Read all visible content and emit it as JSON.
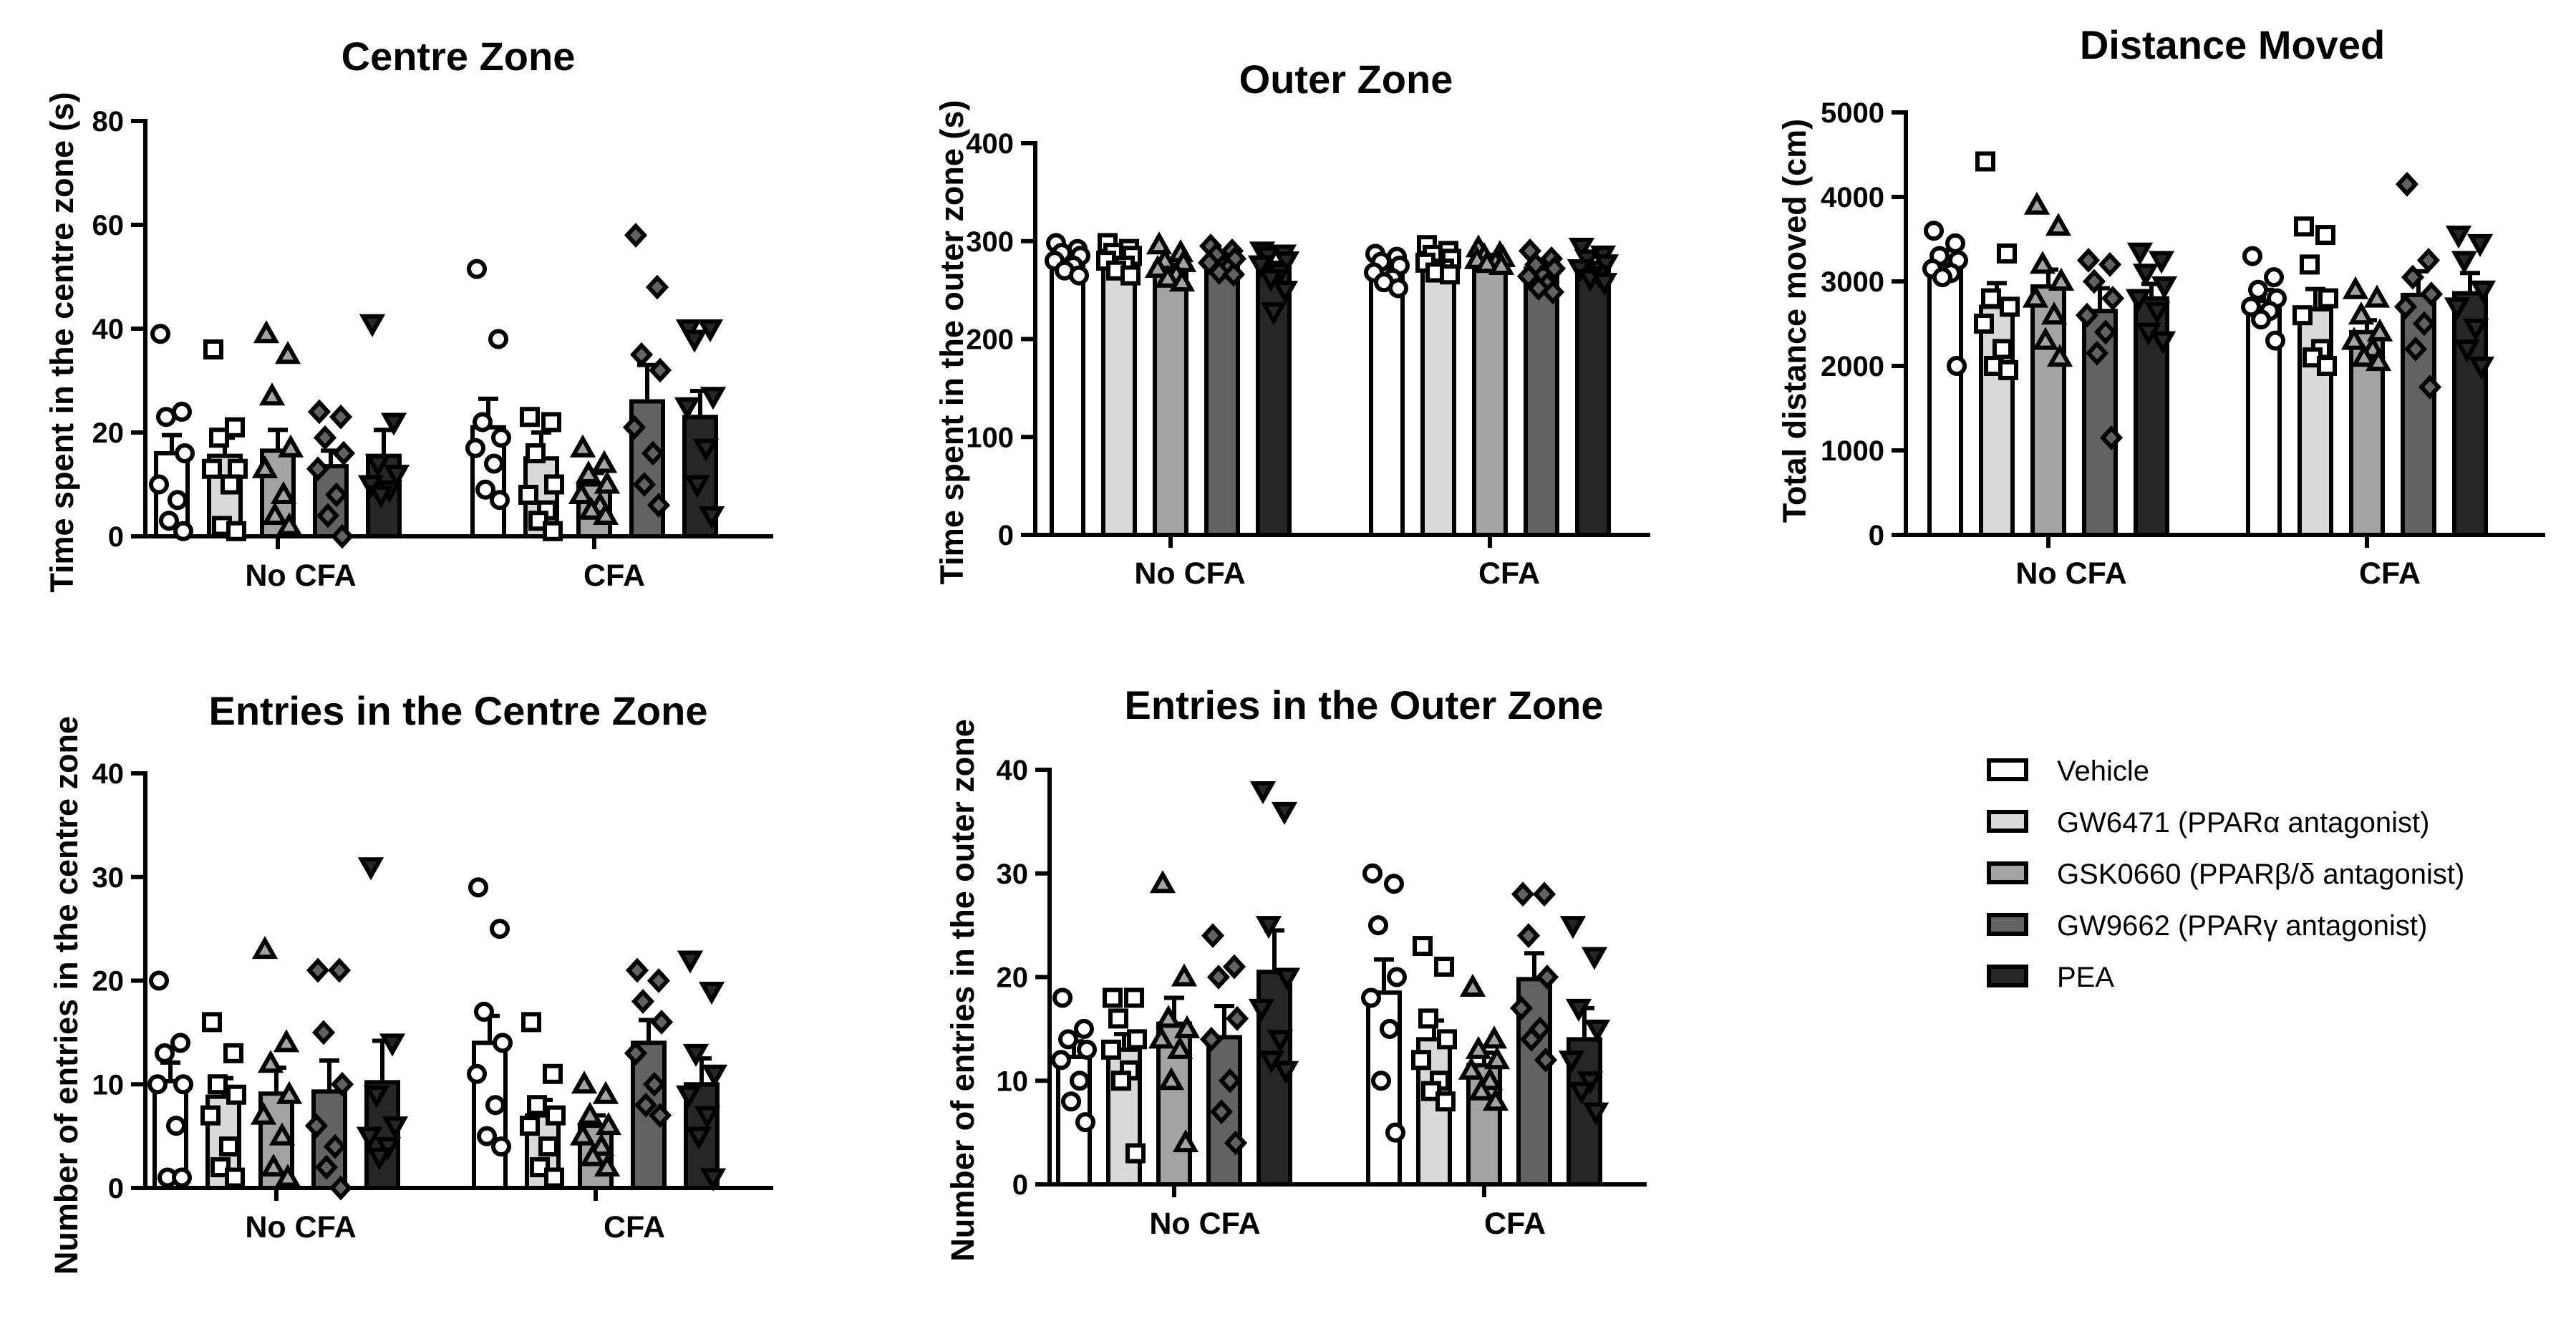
{
  "chart_data": [
    {
      "id": "centre",
      "type": "bar",
      "title": "Centre Zone",
      "xlabel": "",
      "ylabel": "Time spent in the centre zone (s)",
      "ylim": [
        0,
        80
      ],
      "yticks": [
        0,
        20,
        40,
        60,
        80
      ],
      "categories": [
        "No CFA",
        "CFA"
      ],
      "series": [
        {
          "name": "Vehicle",
          "values": [
            16,
            21
          ],
          "sem": [
            3.5,
            5.5
          ],
          "points": [
            [
              39,
              24,
              23,
              16,
              10,
              7,
              3,
              1
            ],
            [
              51.5,
              38,
              22,
              19,
              17,
              14,
              9,
              7
            ]
          ]
        },
        {
          "name": "GW6471 (PPARα antagonist)",
          "values": [
            15.5,
            15
          ],
          "sem": [
            3.5,
            5
          ],
          "points": [
            [
              36,
              21,
              19,
              13,
              13,
              10,
              2,
              1
            ],
            [
              23,
              22,
              16,
              10,
              8,
              5,
              3,
              1
            ]
          ]
        },
        {
          "name": "GSK0660 (PPARβ/δ antagonist)",
          "values": [
            16.5,
            10
          ],
          "sem": [
            4,
            2.2
          ],
          "points": [
            [
              39,
              35,
              27,
              17,
              13,
              8,
              4,
              2
            ],
            [
              17,
              14,
              12,
              10,
              8,
              6,
              5,
              4
            ]
          ]
        },
        {
          "name": "GW9662 (PPARγ antagonist)",
          "values": [
            13.5,
            26
          ],
          "sem": [
            3,
            7
          ],
          "points": [
            [
              24,
              23,
              19,
              16,
              13,
              8,
              4,
              0
            ],
            [
              58,
              48,
              35,
              32,
              21,
              16,
              10,
              6
            ]
          ]
        },
        {
          "name": "PEA",
          "values": [
            15.5,
            23
          ],
          "sem": [
            5,
            5
          ],
          "points": [
            [
              41,
              22,
              14,
              12,
              10,
              9,
              8
            ],
            [
              40,
              40,
              38,
              27,
              25,
              17,
              10,
              4
            ]
          ]
        }
      ]
    },
    {
      "id": "outer",
      "type": "bar",
      "title": "Outer Zone",
      "xlabel": "",
      "ylabel": "Time spent in the outer zone (s)",
      "ylim": [
        0,
        400
      ],
      "yticks": [
        0,
        100,
        200,
        300,
        400
      ],
      "categories": [
        "No CFA",
        "CFA"
      ],
      "series": [
        {
          "name": "Vehicle",
          "values": [
            283,
            273
          ],
          "sem": [
            5,
            7
          ],
          "points": [
            [
              298,
              292,
              288,
              285,
              280,
              275,
              270,
              265
            ],
            [
              287,
              284,
              279,
              275,
              268,
              262,
              258,
              252
            ]
          ]
        },
        {
          "name": "GW6471 (PPARα antagonist)",
          "values": [
            284,
            282
          ],
          "sem": [
            4,
            4
          ],
          "points": [
            [
              298,
              292,
              288,
              285,
              280,
              275,
              270,
              265
            ],
            [
              296,
              290,
              286,
              282,
              278,
              272,
              268,
              266
            ]
          ]
        },
        {
          "name": "GSK0660 (PPARβ/δ antagonist)",
          "values": [
            276,
            283
          ],
          "sem": [
            5,
            3
          ],
          "points": [
            [
              296,
              288,
              280,
              278,
              272,
              266,
              262,
              258
            ],
            [
              293,
              287,
              285,
              283,
              281,
              279,
              277,
              275
            ]
          ]
        },
        {
          "name": "GW9662 (PPARγ antagonist)",
          "values": [
            282,
            272
          ],
          "sem": [
            4,
            6
          ],
          "points": [
            [
              295,
              290,
              286,
              282,
              278,
              272,
              268,
              266
            ],
            [
              290,
              282,
              276,
              272,
              264,
              256,
              252,
              248
            ]
          ]
        },
        {
          "name": "PEA",
          "values": [
            272,
            273
          ],
          "sem": [
            6,
            5
          ],
          "points": [
            [
              290,
              287,
              285,
              280,
              276,
              268,
              262,
              250,
              228
            ],
            [
              294,
              286,
              282,
              277,
              272,
              266,
              262,
              258
            ]
          ]
        }
      ]
    },
    {
      "id": "distance",
      "type": "bar",
      "title": "Distance Moved",
      "xlabel": "",
      "ylabel": "Total distance moved (cm)",
      "ylim": [
        0,
        5000
      ],
      "yticks": [
        0,
        1000,
        2000,
        3000,
        4000,
        5000
      ],
      "categories": [
        "No CFA",
        "CFA"
      ],
      "series": [
        {
          "name": "Vehicle",
          "values": [
            3200,
            2770
          ],
          "sem": [
            170,
            130
          ],
          "points": [
            [
              3600,
              3450,
              3300,
              3250,
              3150,
              3100,
              3050,
              2000
            ],
            [
              3300,
              3050,
              2900,
              2800,
              2700,
              2650,
              2550,
              2300
            ]
          ]
        },
        {
          "name": "GW6471 (PPARα antagonist)",
          "values": [
            2700,
            2670
          ],
          "sem": [
            280,
            240
          ],
          "points": [
            [
              4420,
              3330,
              2800,
              2700,
              2500,
              2200,
              2000,
              1950
            ],
            [
              3650,
              3550,
              3200,
              2800,
              2600,
              2200,
              2100,
              2000
            ]
          ]
        },
        {
          "name": "GSK0660 (PPARβ/δ antagonist)",
          "values": [
            2940,
            2400
          ],
          "sem": [
            200,
            140
          ],
          "points": [
            [
              3900,
              3650,
              3200,
              3000,
              2800,
              2600,
              2300,
              2100
            ],
            [
              2900,
              2800,
              2600,
              2400,
              2300,
              2200,
              2100,
              2050
            ]
          ]
        },
        {
          "name": "GW9662 (PPARγ antagonist)",
          "values": [
            2650,
            2840
          ],
          "sem": [
            270,
            280
          ],
          "points": [
            [
              3250,
              3200,
              3000,
              2800,
              2600,
              2400,
              2150,
              1150
            ],
            [
              4150,
              3250,
              3050,
              2850,
              2700,
              2500,
              2200,
              1750
            ]
          ]
        },
        {
          "name": "PEA",
          "values": [
            2800,
            2860
          ],
          "sem": [
            170,
            240
          ],
          "points": [
            [
              3350,
              3250,
              3100,
              2950,
              2800,
              2650,
              2400,
              2300
            ],
            [
              3550,
              3450,
              3250,
              2900,
              2700,
              2450,
              2200,
              2000
            ]
          ]
        }
      ]
    },
    {
      "id": "entries-centre",
      "type": "bar",
      "title": "Entries in the Centre Zone",
      "xlabel": "",
      "ylabel": "Number of entries in the centre zone",
      "ylim": [
        0,
        40
      ],
      "yticks": [
        0,
        10,
        20,
        30,
        40
      ],
      "categories": [
        "No CFA",
        "CFA"
      ],
      "series": [
        {
          "name": "Vehicle",
          "values": [
            10.3,
            14
          ],
          "sem": [
            1.8,
            2.6
          ],
          "points": [
            [
              20,
              14,
              13,
              10,
              10,
              6,
              1,
              1
            ],
            [
              29,
              25,
              17,
              14,
              11,
              8,
              5,
              4
            ]
          ]
        },
        {
          "name": "GW6471 (PPARα antagonist)",
          "values": [
            8.8,
            7
          ],
          "sem": [
            1.8,
            1.5
          ],
          "points": [
            [
              16,
              13,
              10,
              9,
              7,
              4,
              2,
              1
            ],
            [
              16,
              11,
              8,
              7,
              6,
              4,
              2,
              1
            ]
          ]
        },
        {
          "name": "GSK0660 (PPARβ/δ antagonist)",
          "values": [
            9.1,
            6
          ],
          "sem": [
            2.5,
            1
          ],
          "points": [
            [
              23,
              14,
              12,
              9,
              7,
              5,
              2,
              1
            ],
            [
              10,
              9,
              7,
              6,
              5,
              4,
              3,
              2
            ]
          ]
        },
        {
          "name": "GW9662 (PPARγ antagonist)",
          "values": [
            9.3,
            14
          ],
          "sem": [
            3,
            2.2
          ],
          "points": [
            [
              21,
              21,
              15,
              10,
              6,
              4,
              2,
              0
            ],
            [
              21,
              20,
              18,
              16,
              13,
              10,
              8,
              7
            ]
          ]
        },
        {
          "name": "PEA",
          "values": [
            10.2,
            10
          ],
          "sem": [
            4,
            2.5
          ],
          "points": [
            [
              31,
              14,
              9,
              6,
              5,
              4,
              3
            ],
            [
              22,
              19,
              13,
              11,
              9,
              7,
              5,
              1
            ]
          ]
        }
      ]
    },
    {
      "id": "entries-outer",
      "type": "bar",
      "title": "Entries in the Outer Zone",
      "xlabel": "",
      "ylabel": "Number of entries in the outer zone",
      "ylim": [
        0,
        40
      ],
      "yticks": [
        0,
        10,
        20,
        30,
        40
      ],
      "categories": [
        "No CFA",
        "CFA"
      ],
      "series": [
        {
          "name": "Vehicle",
          "values": [
            12.3,
            18.5
          ],
          "sem": [
            1.5,
            3.2
          ],
          "points": [
            [
              18,
              15,
              14,
              13,
              12,
              10,
              8,
              6
            ],
            [
              30,
              29,
              25,
              20,
              18,
              15,
              10,
              5
            ]
          ]
        },
        {
          "name": "GW6471 (PPARα antagonist)",
          "values": [
            13,
            14
          ],
          "sem": [
            1.5,
            1.8
          ],
          "points": [
            [
              18,
              18,
              16,
              14,
              13,
              11,
              10,
              3
            ],
            [
              23,
              21,
              16,
              14,
              12,
              10,
              9,
              8
            ]
          ]
        },
        {
          "name": "GSK0660 (PPARβ/δ antagonist)",
          "values": [
            15.5,
            11.5
          ],
          "sem": [
            2.5,
            1.2
          ],
          "points": [
            [
              29,
              20,
              16,
              15,
              14,
              13,
              10,
              4
            ],
            [
              19,
              14,
              13,
              12,
              11,
              10,
              9,
              8
            ]
          ]
        },
        {
          "name": "GW9662 (PPARγ antagonist)",
          "values": [
            14.2,
            19.8
          ],
          "sem": [
            3,
            2.5
          ],
          "points": [
            [
              24,
              21,
              20,
              16,
              14,
              10,
              7,
              4
            ],
            [
              28,
              28,
              24,
              20,
              17,
              15,
              14,
              12
            ]
          ]
        },
        {
          "name": "PEA",
          "values": [
            20.5,
            14
          ],
          "sem": [
            4,
            3
          ],
          "points": [
            [
              38,
              36,
              25,
              20,
              17,
              14,
              12,
              11
            ],
            [
              25,
              22,
              17,
              15,
              12,
              10,
              9,
              7
            ]
          ]
        }
      ]
    }
  ],
  "legend": [
    {
      "label": "Vehicle",
      "color": "#ffffff"
    },
    {
      "label": "GW6471 (PPARα antagonist)",
      "color": "#d9d9d9"
    },
    {
      "label": "GSK0660 (PPARβ/δ antagonist)",
      "color": "#a3a3a3"
    },
    {
      "label": "GW9662 (PPARγ antagonist)",
      "color": "#626262"
    },
    {
      "label": "PEA",
      "color": "#262626"
    }
  ],
  "marker_shapes": [
    "circle",
    "square",
    "triangle-up",
    "diamond",
    "triangle-down"
  ]
}
